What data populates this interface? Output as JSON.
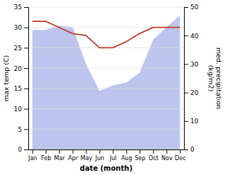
{
  "chart_data": {
    "type": "line",
    "categories": [
      "Jan",
      "Feb",
      "Mar",
      "Apr",
      "May",
      "Jun",
      "Jul",
      "Aug",
      "Sep",
      "Oct",
      "Nov",
      "Dec"
    ],
    "xlabel": "date (month)",
    "ylabel": "max temp (C)",
    "y2label": "med. precipitation\n(kg/m2)",
    "series": [
      {
        "type": "area",
        "axis": "y2",
        "color": "#bdc5ee",
        "values": [
          42.0,
          42.0,
          43.5,
          43.0,
          30.0,
          20.5,
          22.5,
          23.5,
          27.0,
          38.5,
          43.0,
          47.0
        ]
      },
      {
        "type": "line",
        "color": "#c0392b",
        "values": [
          31.5,
          31.5,
          30.0,
          28.5,
          28.0,
          25.0,
          25.0,
          26.5,
          28.5,
          30.0,
          30.0,
          30.0
        ]
      }
    ],
    "ylim": [
      0,
      35
    ],
    "yticks": [
      0,
      5,
      10,
      15,
      20,
      25,
      30,
      35
    ],
    "y2lim": [
      0,
      50
    ],
    "y2ticks": [
      0,
      10,
      20,
      30,
      40,
      50
    ],
    "grid": true
  }
}
